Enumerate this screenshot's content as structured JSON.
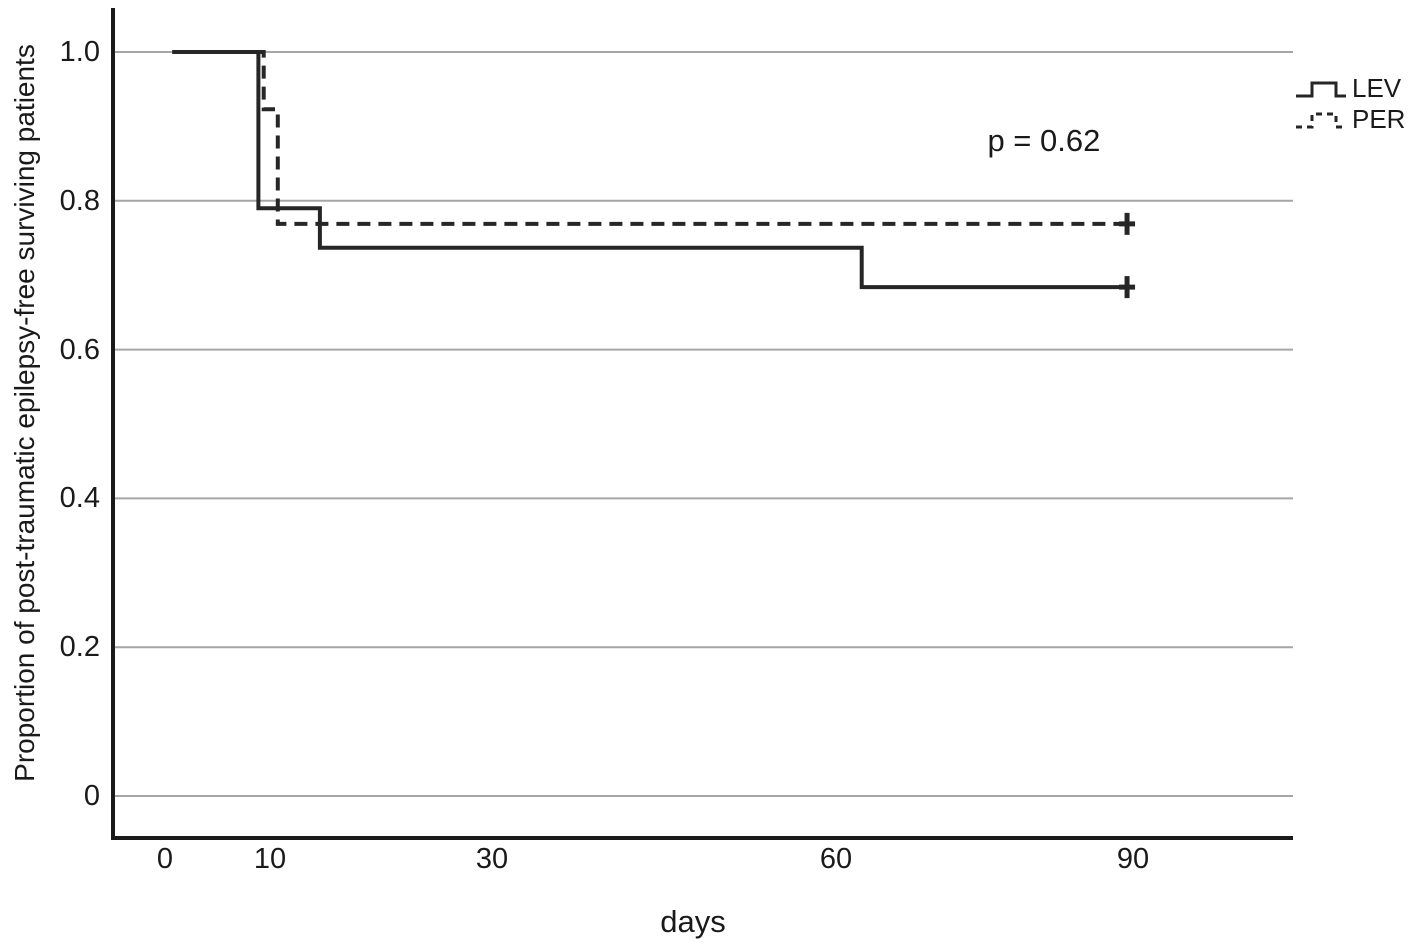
{
  "figure": {
    "background_color": "#ffffff",
    "text_color": "#1a1a1a"
  },
  "chart_data": {
    "type": "line",
    "variant": "kaplan_meier_step_survival",
    "title": "",
    "xlabel": "days",
    "ylabel": "Proportion of post-traumatic epilepsy-free surviving patients",
    "x_ticks": [
      {
        "label": "0",
        "value": 0
      },
      {
        "label": "10",
        "value": 10
      },
      {
        "label": "30",
        "value": 30
      },
      {
        "label": "60",
        "value": 60
      },
      {
        "label": "90",
        "value": 90
      }
    ],
    "y_ticks": [
      {
        "label": "1.0",
        "value": 1.0
      },
      {
        "label": "0.8",
        "value": 0.8
      },
      {
        "label": "0.6",
        "value": 0.6
      },
      {
        "label": "0.4",
        "value": 0.4
      },
      {
        "label": "0.2",
        "value": 0.2
      },
      {
        "label": "0",
        "value": 0
      }
    ],
    "xlim": [
      0,
      105
    ],
    "ylim": [
      -0.06,
      1.06
    ],
    "grid": "horizontal",
    "legend_position": "top-right",
    "annotation": {
      "text": "p = 0.62",
      "at_day": 81,
      "at_proportion": 0.88
    },
    "colors": {
      "curve": "#262626",
      "grid": "#a6a6a6",
      "axis": "#1a1a1a"
    },
    "series": [
      {
        "name": "LEV",
        "line_style": "solid",
        "points_day_proportion": [
          [
            0.7,
            1.0
          ],
          [
            8.9,
            1.0
          ],
          [
            8.9,
            0.79
          ],
          [
            14.5,
            0.79
          ],
          [
            14.5,
            0.737
          ],
          [
            62.6,
            0.737
          ],
          [
            62.6,
            0.684
          ],
          [
            89.4,
            0.684
          ]
        ],
        "censored_day_proportion": [
          [
            89.4,
            0.684
          ]
        ]
      },
      {
        "name": "PER",
        "line_style": "dashed",
        "points_day_proportion": [
          [
            0.7,
            1.0
          ],
          [
            9.4,
            1.0
          ],
          [
            9.4,
            0.923
          ],
          [
            10.7,
            0.923
          ],
          [
            10.7,
            0.769
          ],
          [
            89.4,
            0.769
          ]
        ],
        "censored_day_proportion": [
          [
            89.4,
            0.769
          ]
        ]
      }
    ]
  }
}
